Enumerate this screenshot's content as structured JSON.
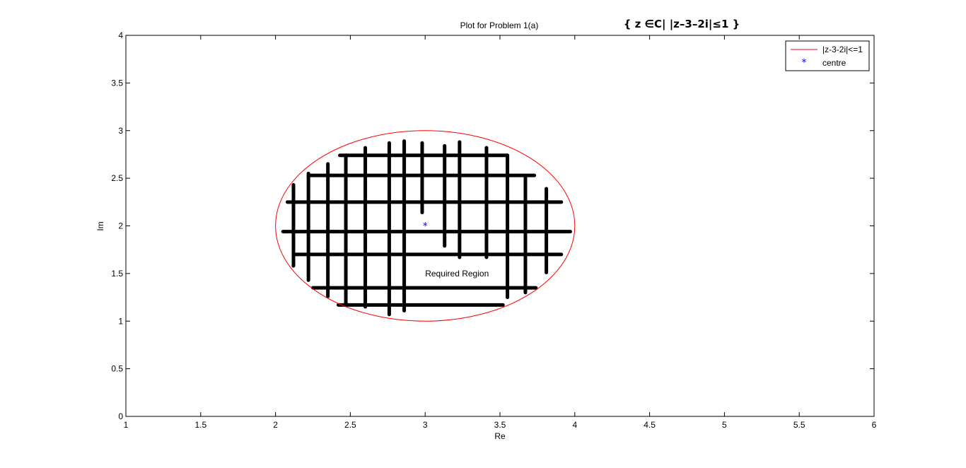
{
  "chart_data": {
    "type": "line",
    "title": "Plot for Problem 1(a)",
    "math_title": "{ z ∈C| |z–3–2i|≤1 }",
    "xlabel": "Re",
    "ylabel": "Im",
    "xlim": [
      1,
      6
    ],
    "ylim": [
      0,
      4
    ],
    "xticks": [
      1,
      1.5,
      2,
      2.5,
      3,
      3.5,
      4,
      4.5,
      5,
      5.5,
      6
    ],
    "xtick_labels": [
      "1",
      "1.5",
      "2",
      "2.5",
      "3",
      "3.5",
      "4",
      "4.5",
      "5",
      "5.5",
      "6"
    ],
    "yticks": [
      0,
      0.5,
      1,
      1.5,
      2,
      2.5,
      3,
      3.5,
      4
    ],
    "ytick_labels": [
      "0",
      "0.5",
      "1",
      "1.5",
      "2",
      "2.5",
      "3",
      "3.5",
      "4"
    ],
    "grid": false,
    "legend_position": "top-right",
    "series": [
      {
        "name": "|z-3-2i|<=1",
        "kind": "circle",
        "center": [
          3,
          2
        ],
        "radius": 1,
        "color": "#ff0000"
      },
      {
        "name": "centre",
        "kind": "marker",
        "points": [
          [
            3,
            2
          ]
        ],
        "marker": "*",
        "color": "#0000ff"
      }
    ],
    "annotations": [
      {
        "text": "Required Region",
        "x": 3.0,
        "y": 1.5
      }
    ],
    "hatch_color": "#000000",
    "hatch_lines": {
      "horizontal": [
        {
          "y": 2.74,
          "x1": 2.43,
          "x2": 3.55
        },
        {
          "y": 2.53,
          "x1": 2.22,
          "x2": 3.73
        },
        {
          "y": 2.25,
          "x1": 2.08,
          "x2": 3.91
        },
        {
          "y": 1.94,
          "x1": 2.05,
          "x2": 3.97
        },
        {
          "y": 1.7,
          "x1": 2.13,
          "x2": 3.91
        },
        {
          "y": 1.35,
          "x1": 2.25,
          "x2": 3.74
        },
        {
          "y": 1.17,
          "x1": 2.42,
          "x2": 3.52
        }
      ],
      "vertical": [
        {
          "x": 2.12,
          "y1": 1.58,
          "y2": 2.43
        },
        {
          "x": 2.22,
          "y1": 1.43,
          "y2": 2.55
        },
        {
          "x": 2.35,
          "y1": 1.26,
          "y2": 2.65
        },
        {
          "x": 2.47,
          "y1": 1.17,
          "y2": 2.74
        },
        {
          "x": 2.6,
          "y1": 1.15,
          "y2": 2.82
        },
        {
          "x": 2.76,
          "y1": 1.07,
          "y2": 2.87
        },
        {
          "x": 2.86,
          "y1": 1.11,
          "y2": 2.89
        },
        {
          "x": 2.98,
          "y1": 2.14,
          "y2": 2.87
        },
        {
          "x": 3.13,
          "y1": 1.79,
          "y2": 2.84
        },
        {
          "x": 3.23,
          "y1": 1.67,
          "y2": 2.88
        },
        {
          "x": 3.41,
          "y1": 1.67,
          "y2": 2.82
        },
        {
          "x": 3.55,
          "y1": 1.25,
          "y2": 2.74
        },
        {
          "x": 3.67,
          "y1": 1.3,
          "y2": 2.52
        },
        {
          "x": 3.81,
          "y1": 1.51,
          "y2": 2.39
        }
      ]
    }
  }
}
